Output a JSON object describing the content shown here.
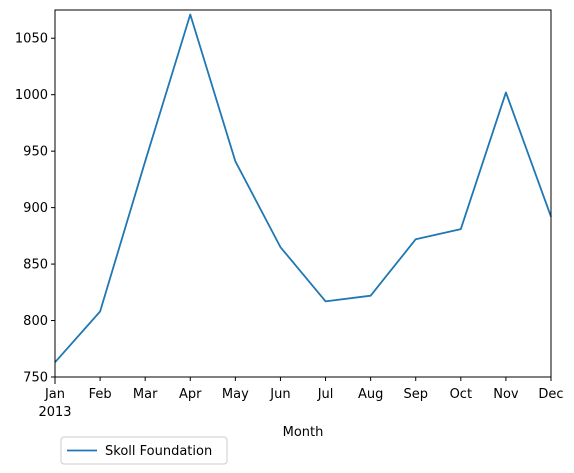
{
  "chart_data": {
    "type": "line",
    "x": [
      "Jan",
      "Feb",
      "Mar",
      "Apr",
      "May",
      "Jun",
      "Jul",
      "Aug",
      "Sep",
      "Oct",
      "Nov",
      "Dec"
    ],
    "x_sublabel_first": "2013",
    "series": [
      {
        "name": "Skoll Foundation",
        "values": [
          763,
          808,
          941,
          1071,
          941,
          865,
          817,
          822,
          872,
          881,
          1002,
          892
        ],
        "color": "#1f77b4"
      }
    ],
    "xlabel": "Month",
    "ylabel": "",
    "ylim": [
      750,
      1075
    ],
    "yticks": [
      750,
      800,
      850,
      900,
      950,
      1000,
      1050
    ],
    "grid": false,
    "legend": "bottom-left"
  }
}
